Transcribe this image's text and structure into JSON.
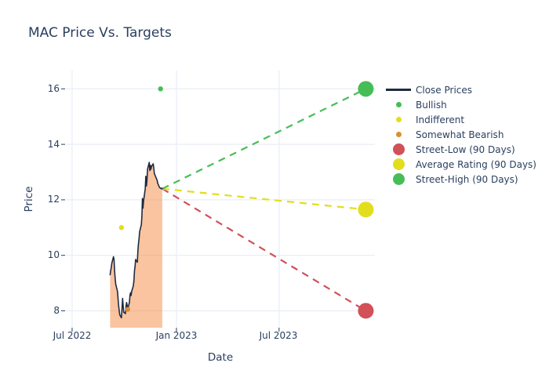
{
  "title": "MAC Price Vs. Targets",
  "colors": {
    "text": "#2a3f5f",
    "grid": "#e9eef6",
    "close_line": "#1f2b40",
    "close_fill": "rgba(246,148,82,0.55)",
    "bullish_green": "#47bd57",
    "indifferent_yellow": "#e2de1d",
    "bearish_orange": "#dd8e32",
    "street_low_red": "#d25058"
  },
  "legend": {
    "position": "right",
    "items": [
      {
        "label": "Close Prices",
        "kind": "line",
        "color": "#1f2b40"
      },
      {
        "label": "Bullish",
        "kind": "dot",
        "color": "#47bd57"
      },
      {
        "label": "Indifferent",
        "kind": "dot",
        "color": "#e2de1d"
      },
      {
        "label": "Somewhat Bearish",
        "kind": "dot",
        "color": "#dd8e32"
      },
      {
        "label": "Street-Low (90 Days)",
        "kind": "big-dot",
        "color": "#d25058"
      },
      {
        "label": "Average Rating (90 Days)",
        "kind": "big-dot",
        "color": "#e2de1d"
      },
      {
        "label": "Street-High (90 Days)",
        "kind": "big-dot",
        "color": "#47bd57"
      }
    ]
  },
  "chart_data": {
    "type": "line",
    "title": "MAC Price Vs. Targets",
    "xlabel": "Date",
    "ylabel": "Price",
    "grid": true,
    "legend_position": "right",
    "x_range": [
      "2022-06-20",
      "2023-12-17"
    ],
    "y_range": [
      7.39,
      16.66
    ],
    "yticks": [
      8,
      10,
      12,
      14,
      16
    ],
    "ytick_labels": [
      "8",
      "10",
      "12",
      "14",
      "16"
    ],
    "xticks": [
      {
        "label": "Jul 2022",
        "date": "2022-07-01"
      },
      {
        "label": "Jan 2023",
        "date": "2023-01-01"
      },
      {
        "label": "Jul 2023",
        "date": "2023-07-01"
      }
    ],
    "series": [
      {
        "name": "Close Prices",
        "kind": "line",
        "color": "#1f2b40",
        "fill": "rgba(246,148,82,0.55)",
        "dates": [
          "2022-09-06",
          "2022-09-07",
          "2022-09-08",
          "2022-09-09",
          "2022-09-12",
          "2022-09-13",
          "2022-09-14",
          "2022-09-15",
          "2022-09-16",
          "2022-09-19",
          "2022-09-20",
          "2022-09-21",
          "2022-09-22",
          "2022-09-23",
          "2022-09-26",
          "2022-09-27",
          "2022-09-28",
          "2022-09-29",
          "2022-09-30",
          "2022-10-03",
          "2022-10-04",
          "2022-10-05",
          "2022-10-06",
          "2022-10-07",
          "2022-10-10",
          "2022-10-11",
          "2022-10-12",
          "2022-10-13",
          "2022-10-14",
          "2022-10-17",
          "2022-10-18",
          "2022-10-19",
          "2022-10-20",
          "2022-10-21",
          "2022-10-24",
          "2022-10-25",
          "2022-10-26",
          "2022-10-27",
          "2022-10-28",
          "2022-10-31",
          "2022-11-01",
          "2022-11-02",
          "2022-11-03",
          "2022-11-04",
          "2022-11-07",
          "2022-11-08",
          "2022-11-09",
          "2022-11-10",
          "2022-11-11",
          "2022-11-14",
          "2022-11-15",
          "2022-11-16",
          "2022-11-17",
          "2022-11-18",
          "2022-11-21",
          "2022-11-22",
          "2022-11-23",
          "2022-11-25",
          "2022-11-28",
          "2022-11-29",
          "2022-11-30",
          "2022-12-01",
          "2022-12-02",
          "2022-12-05",
          "2022-12-06",
          "2022-12-07"
        ],
        "values": [
          9.3,
          9.45,
          9.55,
          9.72,
          9.95,
          9.85,
          9.4,
          9.15,
          8.95,
          8.7,
          8.45,
          8.2,
          8.0,
          7.85,
          7.75,
          8.1,
          8.45,
          8.2,
          7.95,
          7.9,
          8.15,
          8.3,
          8.2,
          8.05,
          8.3,
          8.55,
          8.65,
          8.55,
          8.7,
          8.9,
          9.1,
          9.45,
          9.6,
          9.85,
          9.75,
          10.15,
          10.4,
          10.6,
          10.85,
          11.1,
          11.4,
          12.05,
          11.7,
          11.95,
          12.4,
          12.85,
          12.5,
          12.7,
          13.1,
          13.35,
          13.05,
          13.25,
          13.1,
          13.2,
          13.3,
          13.15,
          12.95,
          12.85,
          12.7,
          12.6,
          12.55,
          12.5,
          12.45,
          12.4,
          12.42,
          12.4
        ]
      },
      {
        "name": "Bullish",
        "kind": "dot",
        "color": "#47bd57",
        "size": 3.2,
        "dates": [
          "2022-12-04"
        ],
        "values": [
          16.0
        ]
      },
      {
        "name": "Indifferent",
        "kind": "dot",
        "color": "#e2de1d",
        "size": 3.2,
        "dates": [
          "2022-09-26"
        ],
        "values": [
          11.0
        ]
      },
      {
        "name": "Somewhat Bearish",
        "kind": "dot",
        "color": "#dd8e32",
        "size": 3.2,
        "dates": [
          "2022-10-07"
        ],
        "values": [
          8.05
        ]
      },
      {
        "name": "Street-Low (90 Days)",
        "kind": "target",
        "color": "#d25058",
        "size": 10,
        "dates": [
          "2023-12-01"
        ],
        "values": [
          8.0
        ],
        "dash_from": {
          "date": "2022-12-07",
          "value": 12.4
        }
      },
      {
        "name": "Average Rating (90 Days)",
        "kind": "target",
        "color": "#e2de1d",
        "size": 10,
        "dates": [
          "2023-12-01"
        ],
        "values": [
          11.65
        ],
        "dash_from": {
          "date": "2022-12-07",
          "value": 12.4
        }
      },
      {
        "name": "Street-High (90 Days)",
        "kind": "target",
        "color": "#47bd57",
        "size": 10,
        "dates": [
          "2023-12-01"
        ],
        "values": [
          16.0
        ],
        "dash_from": {
          "date": "2022-12-07",
          "value": 12.4
        }
      }
    ]
  }
}
